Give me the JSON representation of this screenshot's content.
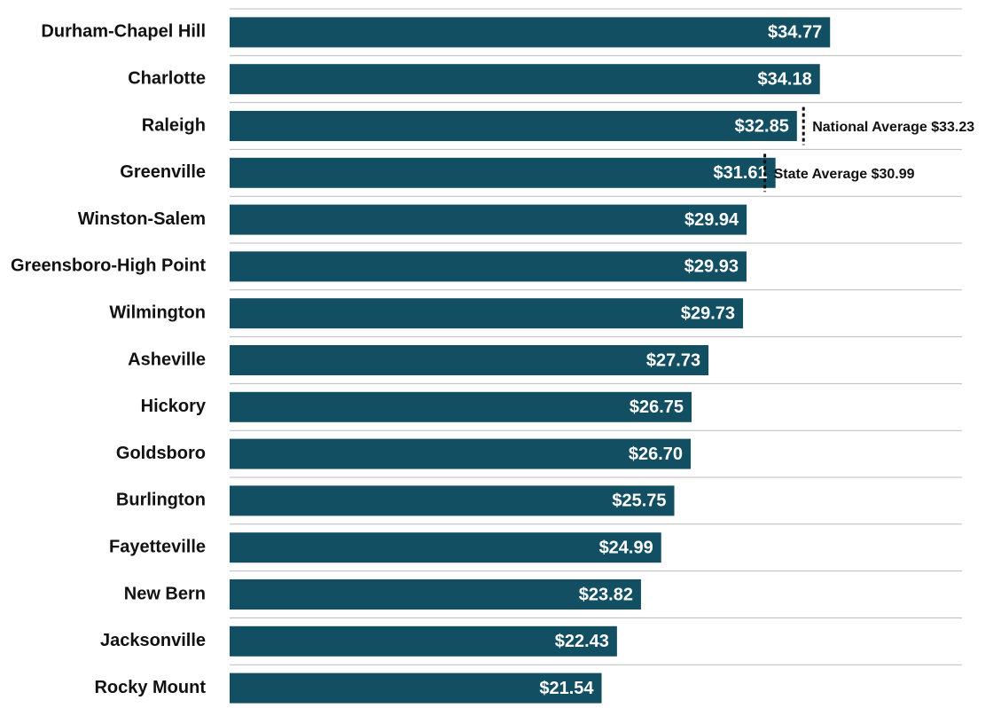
{
  "chart_data": {
    "type": "bar",
    "orientation": "horizontal",
    "categories": [
      "Durham-Chapel Hill",
      "Charlotte",
      "Raleigh",
      "Greenville",
      "Winston-Salem",
      "Greensboro-High Point",
      "Wilmington",
      "Asheville",
      "Hickory",
      "Goldsboro",
      "Burlington",
      "Fayetteville",
      "New Bern",
      "Jacksonville",
      "Rocky Mount"
    ],
    "values": [
      34.77,
      34.18,
      32.85,
      31.61,
      29.94,
      29.93,
      29.73,
      27.73,
      26.75,
      26.7,
      25.75,
      24.99,
      23.82,
      22.43,
      21.54
    ],
    "value_labels": [
      "$34.77",
      "$34.18",
      "$32.85",
      "$31.61",
      "$29.94",
      "$29.93",
      "$29.73",
      "$27.73",
      "$26.75",
      "$26.70",
      "$25.75",
      "$24.99",
      "$23.82",
      "$22.43",
      "$21.54"
    ],
    "color": "#134f63",
    "xlim": [
      0,
      44
    ],
    "annotations": [
      {
        "label": "National Average $33.23",
        "value": 33.23
      },
      {
        "label": "State Average $30.99",
        "value": 30.99
      }
    ]
  }
}
